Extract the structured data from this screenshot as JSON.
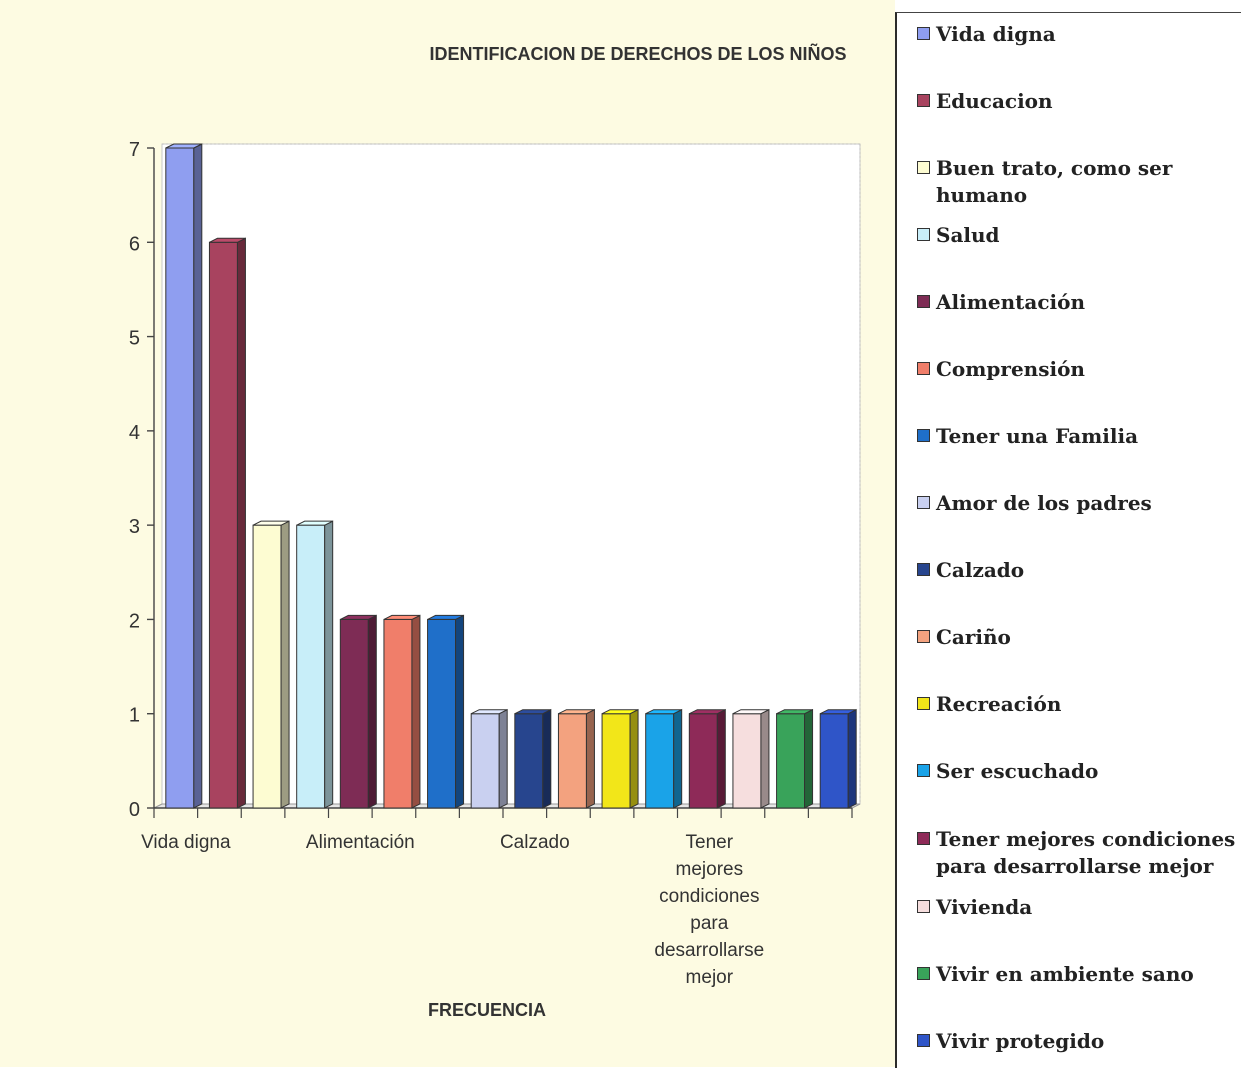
{
  "chart_data": {
    "type": "bar",
    "title": "IDENTIFICACION DE DERECHOS DE LOS NIÑOS",
    "xlabel": "FRECUENCIA",
    "ylabel": "",
    "ylim": [
      0,
      7
    ],
    "yticks": [
      "0",
      "1",
      "2",
      "3",
      "4",
      "5",
      "6",
      "7"
    ],
    "x_tick_labels": [
      "Vida digna",
      "Alimentación",
      "Calzado",
      "Tener mejores condiciones para desarrollarse mejor"
    ],
    "legend_position": "right",
    "grid": false,
    "series": [
      {
        "name": "Vida digna",
        "values": [
          7
        ],
        "color": "#8f9ef0"
      },
      {
        "name": "Educacion",
        "values": [
          6
        ],
        "color": "#a8435f"
      },
      {
        "name": "Buen trato, como ser humano",
        "values": [
          3
        ],
        "color": "#fdfcd2"
      },
      {
        "name": "Salud",
        "values": [
          3
        ],
        "color": "#c8eef9"
      },
      {
        "name": "Alimentación",
        "values": [
          2
        ],
        "color": "#7e2c55"
      },
      {
        "name": "Comprensión",
        "values": [
          2
        ],
        "color": "#f07e6a"
      },
      {
        "name": "Tener una Familia",
        "values": [
          2
        ],
        "color": "#1f6fc9"
      },
      {
        "name": "Amor de los padres",
        "values": [
          1
        ],
        "color": "#c9d0f0"
      },
      {
        "name": "Calzado",
        "values": [
          1
        ],
        "color": "#27458e"
      },
      {
        "name": "Cariño",
        "values": [
          1
        ],
        "color": "#f3a27f"
      },
      {
        "name": "Recreación",
        "values": [
          1
        ],
        "color": "#f2e619"
      },
      {
        "name": "Ser escuchado",
        "values": [
          1
        ],
        "color": "#1aa3e8"
      },
      {
        "name": "Tener mejores condiciones para desarrollarse mejor",
        "values": [
          1
        ],
        "color": "#8e2a58"
      },
      {
        "name": "Vivienda",
        "values": [
          1
        ],
        "color": "#f6dede"
      },
      {
        "name": "Vivir en ambiente sano",
        "values": [
          1
        ],
        "color": "#39a35a"
      },
      {
        "name": "Vivir protegido",
        "values": [
          1
        ],
        "color": "#2f55c8"
      }
    ]
  }
}
